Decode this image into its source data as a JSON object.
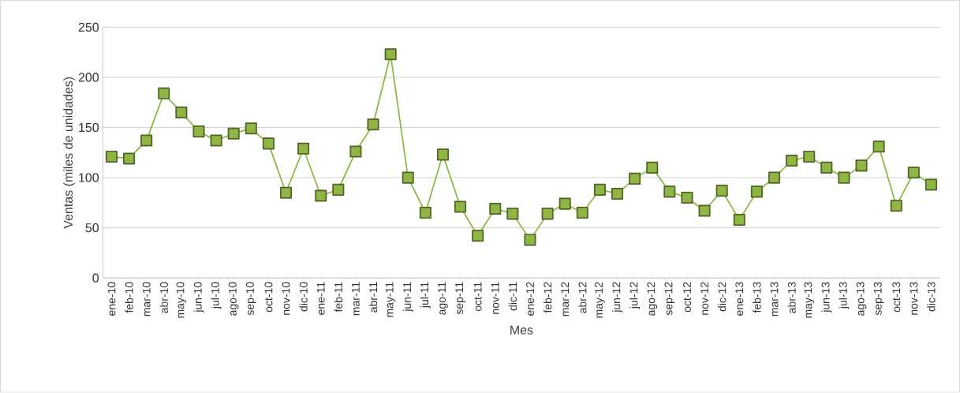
{
  "chart_data": {
    "type": "line",
    "xlabel": "Mes",
    "ylabel": "Ventas (miles de unidades)",
    "categories": [
      "ene-10",
      "feb-10",
      "mar-10",
      "abr-10",
      "may-10",
      "jun-10",
      "jul-10",
      "ago-10",
      "sep-10",
      "oct-10",
      "nov-10",
      "dic-10",
      "ene-11",
      "feb-11",
      "mar-11",
      "abr-11",
      "may-11",
      "jun-11",
      "jul-11",
      "ago-11",
      "sep-11",
      "oct-11",
      "nov-11",
      "dic-11",
      "ene-12",
      "feb-12",
      "mar-12",
      "abr-12",
      "may-12",
      "jun-12",
      "jul-12",
      "ago-12",
      "sep-12",
      "oct-12",
      "nov-12",
      "dic-12",
      "ene-13",
      "feb-13",
      "mar-13",
      "abr-13",
      "may-13",
      "jun-13",
      "jul-13",
      "ago-13",
      "sep-13",
      "oct-13",
      "nov-13",
      "dic-13"
    ],
    "series": [
      {
        "color": "#8fb545",
        "values": [
          121,
          119,
          137,
          184,
          165,
          146,
          137,
          144,
          149,
          134,
          85,
          129,
          82,
          88,
          126,
          153,
          223,
          100,
          65,
          123,
          71,
          42,
          69,
          64,
          38,
          64,
          74,
          65,
          88,
          84,
          99,
          110,
          86,
          80,
          67,
          87,
          58,
          86,
          100,
          117,
          121,
          110,
          100,
          112,
          131,
          72,
          105,
          93
        ]
      }
    ],
    "ylim": [
      0,
      250
    ],
    "yticks": [
      0,
      50,
      100,
      150,
      200,
      250
    ],
    "grid": "y",
    "marker": "square",
    "line_style": "solid"
  }
}
